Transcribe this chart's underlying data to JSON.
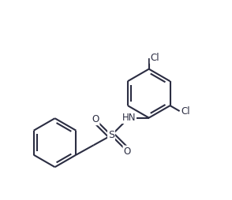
{
  "bg_color": "#ffffff",
  "line_color": "#2b2d42",
  "text_color": "#2b2d42",
  "line_width": 1.5,
  "font_size": 8.5,
  "figsize": [
    2.94,
    2.54
  ],
  "dpi": 100,
  "xlim": [
    0,
    9.4
  ],
  "ylim": [
    0,
    8.1
  ]
}
